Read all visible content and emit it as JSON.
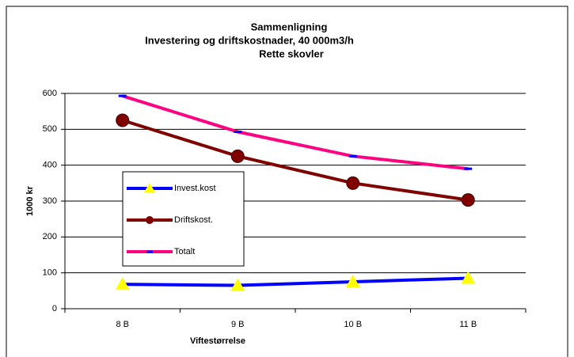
{
  "chart_data": {
    "type": "line",
    "title": [
      "Sammenligning",
      "Investering og driftskostnader, 40 000m3/h",
      "Rette skovler"
    ],
    "xlabel": "Viftestørrelse",
    "ylabel": "1000 kr",
    "categories": [
      "8 B",
      "9 B",
      "10 B",
      "11 B"
    ],
    "series": [
      {
        "name": "Invest.kost",
        "color": "#0000ff",
        "marker_color": "#ffff00",
        "values": [
          68,
          65,
          75,
          85
        ]
      },
      {
        "name": "Driftskost.",
        "color": "#800000",
        "marker_color": "#800000",
        "values": [
          525,
          425,
          350,
          303
        ]
      },
      {
        "name": "Totalt",
        "color": "#ff0080",
        "marker_color": "#0000ff",
        "values": [
          593,
          493,
          425,
          390
        ]
      }
    ],
    "ylim": [
      0,
      600
    ],
    "yticks": [
      0,
      100,
      200,
      300,
      400,
      500,
      600
    ],
    "grid": true
  }
}
